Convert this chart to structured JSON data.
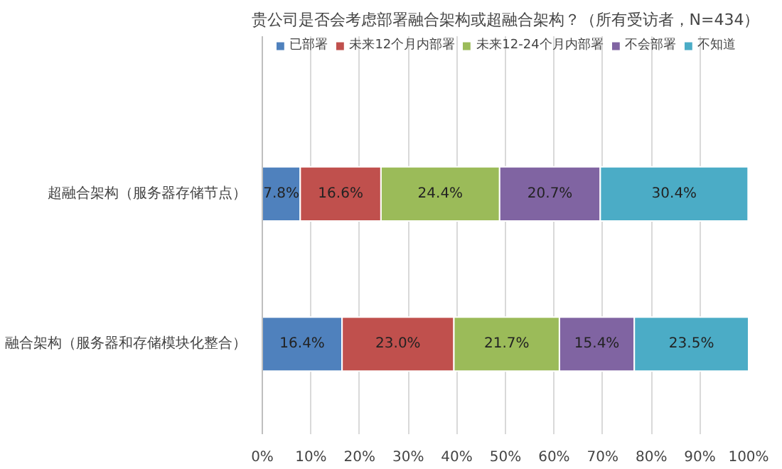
{
  "chart_data": {
    "type": "bar",
    "orientation": "horizontal",
    "stacked": true,
    "title": "贵公司是否会考虑部署融合架构或超融合架构？（所有受访者，N=434）",
    "categories": [
      "超融合架构（服务器存储节点）",
      "融合架构（服务器和存储模块化整合）"
    ],
    "series": [
      {
        "name": "已部署",
        "color": "#4f81bd",
        "values": [
          7.8,
          16.4
        ],
        "value_labels": [
          "7.8%",
          "16.4%"
        ]
      },
      {
        "name": "未来12个月内部署",
        "color": "#c0504d",
        "values": [
          16.6,
          23.0
        ],
        "value_labels": [
          "16.6%",
          "23.0%"
        ]
      },
      {
        "name": "未来12-24个月内部署",
        "color": "#9bbb59",
        "values": [
          24.4,
          21.7
        ],
        "value_labels": [
          "24.4%",
          "21.7%"
        ]
      },
      {
        "name": "不会部署",
        "color": "#8064a2",
        "values": [
          20.7,
          15.4
        ],
        "value_labels": [
          "20.7%",
          "15.4%"
        ]
      },
      {
        "name": "不知道",
        "color": "#4bacc6",
        "values": [
          30.4,
          23.5
        ],
        "value_labels": [
          "30.4%",
          "23.5%"
        ]
      }
    ],
    "xlim": [
      0,
      100
    ],
    "xticks": [
      {
        "value": 0,
        "label": "0%"
      },
      {
        "value": 10,
        "label": "10%"
      },
      {
        "value": 20,
        "label": "20%"
      },
      {
        "value": 30,
        "label": "30%"
      },
      {
        "value": 40,
        "label": "40%"
      },
      {
        "value": 50,
        "label": "50%"
      },
      {
        "value": 60,
        "label": "60%"
      },
      {
        "value": 70,
        "label": "70%"
      },
      {
        "value": 80,
        "label": "80%"
      },
      {
        "value": 90,
        "label": "90%"
      },
      {
        "value": 100,
        "label": "100%"
      }
    ],
    "grid": "x",
    "legend": "top"
  }
}
